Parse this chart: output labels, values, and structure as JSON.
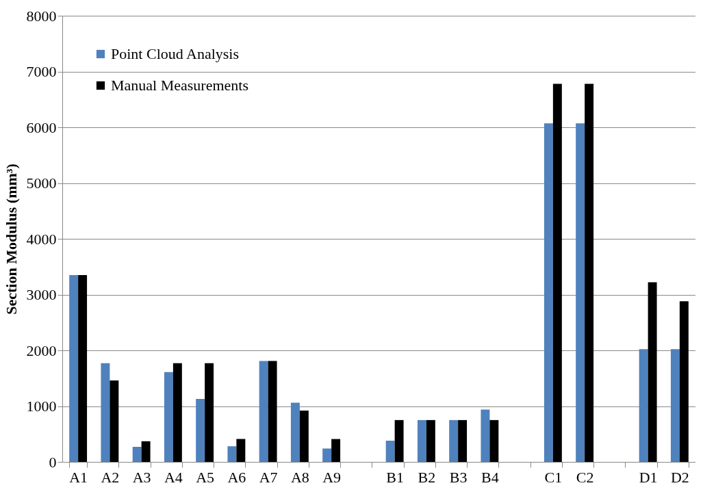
{
  "chart_data": {
    "type": "bar",
    "ylabel": "Section Modulus (mm³)",
    "categories": [
      "A1",
      "A2",
      "A3",
      "A4",
      "A5",
      "A6",
      "A7",
      "A8",
      "A9",
      null,
      "B1",
      "B2",
      "B3",
      "B4",
      null,
      "C1",
      "C2",
      null,
      "D1",
      "D2"
    ],
    "series": [
      {
        "name": "Point Cloud Analysis",
        "color": "#4f81bd",
        "values": [
          3350,
          1770,
          270,
          1610,
          1130,
          280,
          1810,
          1060,
          240,
          null,
          380,
          750,
          750,
          940,
          null,
          6070,
          6070,
          null,
          2020,
          2020
        ]
      },
      {
        "name": "Manual Measurements",
        "color": "#000000",
        "values": [
          3350,
          1460,
          370,
          1770,
          1770,
          410,
          1810,
          920,
          410,
          null,
          750,
          750,
          750,
          750,
          null,
          6780,
          6780,
          null,
          3220,
          2880
        ]
      }
    ],
    "ylim": [
      0,
      8000
    ],
    "yticks": [
      0,
      1000,
      2000,
      3000,
      4000,
      5000,
      6000,
      7000,
      8000
    ],
    "grid": "y",
    "legend": "top left"
  }
}
